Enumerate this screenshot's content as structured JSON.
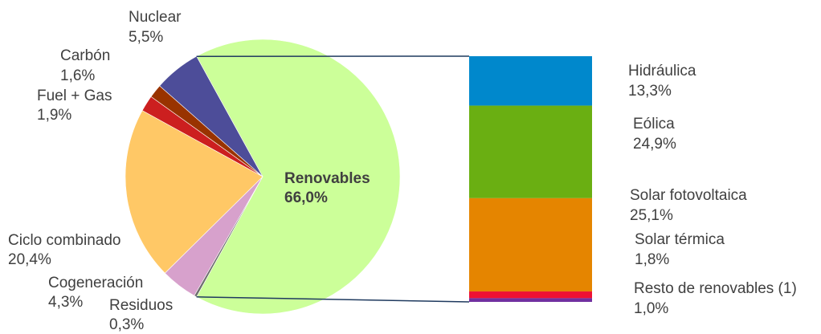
{
  "chart_data": {
    "type": "pie",
    "title": "",
    "pie": {
      "slices": [
        {
          "name": "Renovables",
          "value": 66.0,
          "label": "66,0%",
          "color": "#ccff99"
        },
        {
          "name": "Residuos",
          "value": 0.3,
          "label": "0,3%",
          "color": "#6e6e6e"
        },
        {
          "name": "Cogeneración",
          "value": 4.3,
          "label": "4,3%",
          "color": "#d7a1cc"
        },
        {
          "name": "Ciclo combinado",
          "value": 20.4,
          "label": "20,4%",
          "color": "#ffc866"
        },
        {
          "name": "Fuel + Gas",
          "value": 1.9,
          "label": "1,9%",
          "color": "#cc1f1f"
        },
        {
          "name": "Carbón",
          "value": 1.6,
          "label": "1,6%",
          "color": "#993300"
        },
        {
          "name": "Nuclear",
          "value": 5.5,
          "label": "5,5%",
          "color": "#4d4d99"
        }
      ]
    },
    "breakdown": {
      "of": "Renovables",
      "segments": [
        {
          "name": "Hidráulica",
          "value": 13.3,
          "label": "13,3%",
          "color": "#0088cc"
        },
        {
          "name": "Eólica",
          "value": 24.9,
          "label": "24,9%",
          "color": "#6aaf12"
        },
        {
          "name": "Solar fotovoltaica",
          "value": 25.1,
          "label": "25,1%",
          "color": "#e58500"
        },
        {
          "name": "Solar térmica",
          "value": 1.8,
          "label": "1,8%",
          "color": "#ee1133"
        },
        {
          "name": "Resto de renovables (1)",
          "value": 1.0,
          "label": "1,0%",
          "color": "#7030a0"
        }
      ]
    }
  }
}
